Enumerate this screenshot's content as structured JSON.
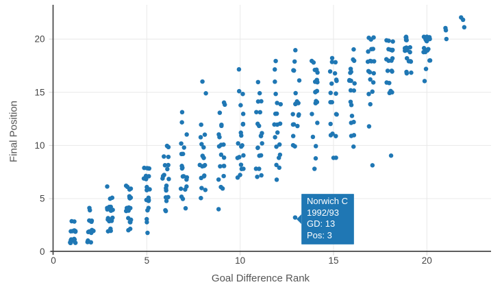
{
  "chart_data": {
    "type": "scatter",
    "title": "",
    "xlabel": "Goal Difference Rank",
    "ylabel": "Final Position",
    "x_ticks": [
      0,
      5,
      10,
      15,
      20
    ],
    "y_ticks": [
      0,
      5,
      10,
      15,
      20
    ],
    "xlim": [
      0,
      23.4
    ],
    "ylim": [
      0,
      23.2
    ],
    "grid": true,
    "marker_color": "#1f77b4",
    "axis_line_color": "#444444",
    "grid_color": "#e8e8e8",
    "tick_mark_color": "#d4d4d4",
    "tick_label_color": "#444444",
    "points_note": "each entry is [goal_difference_rank, final_position, count_of_team_seasons]",
    "points": [
      [
        1,
        1,
        10
      ],
      [
        1,
        2,
        6
      ],
      [
        1,
        3,
        2
      ],
      [
        2,
        1,
        5
      ],
      [
        2,
        2,
        7
      ],
      [
        2,
        3,
        4
      ],
      [
        2,
        4,
        2
      ],
      [
        3,
        2,
        3
      ],
      [
        3,
        3,
        8
      ],
      [
        3,
        4,
        6
      ],
      [
        3,
        5,
        2
      ],
      [
        3,
        6,
        1
      ],
      [
        4,
        2,
        2
      ],
      [
        4,
        3,
        4
      ],
      [
        4,
        4,
        6
      ],
      [
        4,
        5,
        4
      ],
      [
        4,
        6,
        4
      ],
      [
        5,
        2,
        1
      ],
      [
        5,
        3,
        2
      ],
      [
        5,
        4,
        2
      ],
      [
        5,
        5,
        4
      ],
      [
        5,
        6,
        3
      ],
      [
        5,
        7,
        4
      ],
      [
        5,
        8,
        4
      ],
      [
        6,
        4,
        2
      ],
      [
        6,
        5,
        3
      ],
      [
        6,
        6,
        4
      ],
      [
        6,
        7,
        4
      ],
      [
        6,
        8,
        3
      ],
      [
        6,
        9,
        2
      ],
      [
        6,
        10,
        2
      ],
      [
        7,
        4,
        1
      ],
      [
        7,
        5,
        2
      ],
      [
        7,
        6,
        3
      ],
      [
        7,
        7,
        4
      ],
      [
        7,
        8,
        3
      ],
      [
        7,
        9,
        2
      ],
      [
        7,
        10,
        2
      ],
      [
        7,
        11,
        1
      ],
      [
        7,
        12,
        1
      ],
      [
        7,
        13,
        1
      ],
      [
        8,
        5,
        1
      ],
      [
        8,
        6,
        2
      ],
      [
        8,
        7,
        3
      ],
      [
        8,
        8,
        4
      ],
      [
        8,
        9,
        3
      ],
      [
        8,
        10,
        2
      ],
      [
        8,
        11,
        2
      ],
      [
        8,
        12,
        1
      ],
      [
        8,
        15,
        1
      ],
      [
        8,
        16,
        1
      ],
      [
        9,
        4,
        1
      ],
      [
        9,
        6,
        2
      ],
      [
        9,
        7,
        2
      ],
      [
        9,
        8,
        3
      ],
      [
        9,
        9,
        2
      ],
      [
        9,
        10,
        3
      ],
      [
        9,
        11,
        2
      ],
      [
        9,
        12,
        2
      ],
      [
        9,
        13,
        1
      ],
      [
        9,
        14,
        2
      ],
      [
        10,
        7,
        2
      ],
      [
        10,
        8,
        3
      ],
      [
        10,
        9,
        3
      ],
      [
        10,
        10,
        3
      ],
      [
        10,
        11,
        2
      ],
      [
        10,
        12,
        2
      ],
      [
        10,
        13,
        1
      ],
      [
        10,
        14,
        1
      ],
      [
        10,
        15,
        2
      ],
      [
        10,
        17,
        1
      ],
      [
        11,
        7,
        2
      ],
      [
        11,
        8,
        2
      ],
      [
        11,
        9,
        2
      ],
      [
        11,
        10,
        3
      ],
      [
        11,
        11,
        3
      ],
      [
        11,
        12,
        2
      ],
      [
        11,
        13,
        2
      ],
      [
        11,
        14,
        2
      ],
      [
        11,
        15,
        1
      ],
      [
        11,
        16,
        1
      ],
      [
        12,
        7,
        1
      ],
      [
        12,
        8,
        2
      ],
      [
        12,
        9,
        2
      ],
      [
        12,
        10,
        2
      ],
      [
        12,
        11,
        2
      ],
      [
        12,
        12,
        3
      ],
      [
        12,
        13,
        2
      ],
      [
        12,
        14,
        2
      ],
      [
        12,
        15,
        1
      ],
      [
        12,
        16,
        1
      ],
      [
        12,
        17,
        1
      ],
      [
        12,
        18,
        1
      ],
      [
        13,
        10,
        2
      ],
      [
        13,
        11,
        1
      ],
      [
        13,
        12,
        3
      ],
      [
        13,
        13,
        3
      ],
      [
        13,
        14,
        4
      ],
      [
        13,
        15,
        1
      ],
      [
        13,
        16,
        1
      ],
      [
        13,
        17,
        2
      ],
      [
        13,
        18,
        1
      ],
      [
        13,
        19,
        1
      ],
      [
        14,
        8,
        1
      ],
      [
        14,
        9,
        1
      ],
      [
        14,
        10,
        1
      ],
      [
        14,
        11,
        1
      ],
      [
        14,
        12,
        1
      ],
      [
        14,
        13,
        1
      ],
      [
        14,
        14,
        3
      ],
      [
        14,
        15,
        3
      ],
      [
        14,
        16,
        3
      ],
      [
        14,
        17,
        3
      ],
      [
        14,
        18,
        2
      ],
      [
        15,
        9,
        2
      ],
      [
        15,
        11,
        3
      ],
      [
        15,
        12,
        1
      ],
      [
        15,
        13,
        2
      ],
      [
        15,
        14,
        2
      ],
      [
        15,
        15,
        2
      ],
      [
        15,
        16,
        3
      ],
      [
        15,
        17,
        2
      ],
      [
        15,
        18,
        3
      ],
      [
        16,
        10,
        1
      ],
      [
        16,
        11,
        2
      ],
      [
        16,
        12,
        2
      ],
      [
        16,
        13,
        1
      ],
      [
        16,
        14,
        2
      ],
      [
        16,
        15,
        2
      ],
      [
        16,
        16,
        4
      ],
      [
        16,
        17,
        3
      ],
      [
        16,
        18,
        2
      ],
      [
        16,
        19,
        1
      ],
      [
        17,
        8,
        1
      ],
      [
        17,
        12,
        1
      ],
      [
        17,
        14,
        1
      ],
      [
        17,
        15,
        2
      ],
      [
        17,
        16,
        2
      ],
      [
        17,
        17,
        3
      ],
      [
        17,
        18,
        4
      ],
      [
        17,
        19,
        3
      ],
      [
        17,
        20,
        3
      ],
      [
        18,
        9,
        1
      ],
      [
        18,
        15,
        3
      ],
      [
        18,
        16,
        2
      ],
      [
        18,
        17,
        3
      ],
      [
        18,
        18,
        4
      ],
      [
        18,
        19,
        4
      ],
      [
        18,
        20,
        3
      ],
      [
        19,
        17,
        3
      ],
      [
        19,
        18,
        4
      ],
      [
        19,
        19,
        8
      ],
      [
        19,
        20,
        5
      ],
      [
        20,
        16,
        1
      ],
      [
        20,
        17,
        1
      ],
      [
        20,
        18,
        2
      ],
      [
        20,
        19,
        6
      ],
      [
        20,
        20,
        10
      ],
      [
        21,
        20,
        1
      ],
      [
        21,
        21,
        2
      ],
      [
        22,
        21,
        1
      ],
      [
        22,
        22,
        2
      ]
    ],
    "highlight_point": {
      "team": "Norwich C",
      "season": "1992/93",
      "goal_difference_rank": 13,
      "final_position": 3
    }
  },
  "tooltip": {
    "bg_color": "#1f77b4",
    "text_color": "#ffffff",
    "line1": "Norwich C",
    "line2": "1992/93",
    "line3": "GD: 13",
    "line4": "Pos: 3"
  }
}
